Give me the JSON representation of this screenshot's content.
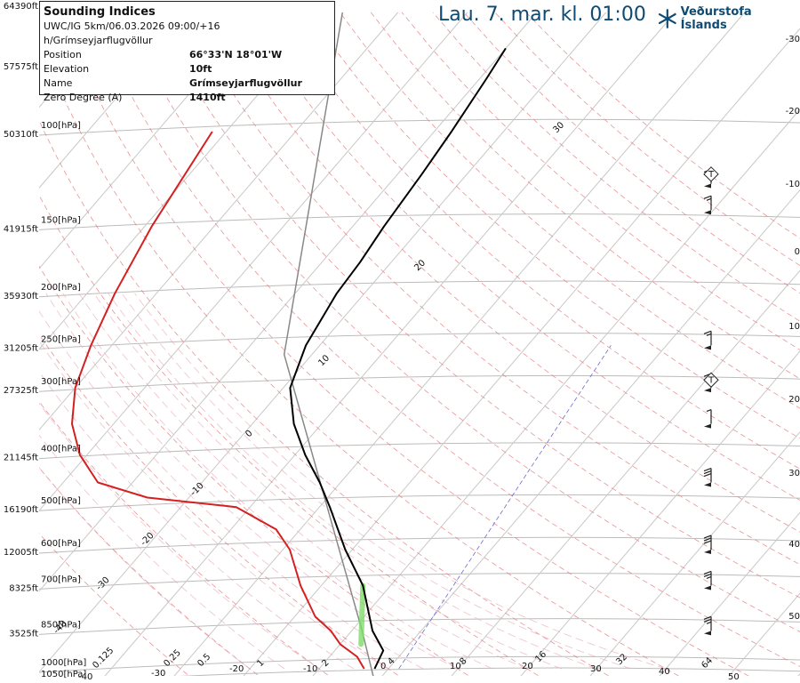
{
  "header": {
    "title": "Sounding Indices",
    "model_line": "UWC/IG 5km/06.03.2026 09:00/+16 h/Grímseyjarflugvöllur",
    "rows": [
      {
        "key": "Position",
        "value": "66°33'N 18°01'W"
      },
      {
        "key": "Elevation",
        "value": "10ft"
      },
      {
        "key": "Name",
        "value": "Grímseyjarflugvöllur"
      },
      {
        "key": "Zero Degree (A)",
        "value": "1410ft"
      }
    ]
  },
  "valid_time": "Lau. 7. mar. kl. 01:00",
  "logo_text": "Veðurstofa Íslands",
  "chart_data": {
    "type": "line",
    "title": "",
    "y_axis": "pressure (hPa), log scale",
    "pressure_levels": [
      {
        "p": 100,
        "label": "100[hPa]",
        "height": "50310ft"
      },
      {
        "p": 150,
        "label": "150[hPa]",
        "height": "41915ft"
      },
      {
        "p": 200,
        "label": "200[hPa]",
        "height": "35930ft"
      },
      {
        "p": 250,
        "label": "250[hPa]",
        "height": "31205ft"
      },
      {
        "p": 300,
        "label": "300[hPa]",
        "height": "27325ft"
      },
      {
        "p": 400,
        "label": "400[hPa]",
        "height": "21145ft"
      },
      {
        "p": 500,
        "label": "500[hPa]",
        "height": "16190ft"
      },
      {
        "p": 600,
        "label": "600[hPa]",
        "height": "12005ft"
      },
      {
        "p": 700,
        "label": "700[hPa]",
        "height": "8325ft"
      },
      {
        "p": 850,
        "label": "850[hPa]",
        "height": "3525ft"
      },
      {
        "p": 1000,
        "label": "1000[hPa]",
        "height": ""
      },
      {
        "p": 1050,
        "label": "1050[hPa]",
        "height": ""
      }
    ],
    "top_heights": [
      "64390ft",
      "57575ft"
    ],
    "isotherm_labels": [
      "30",
      "20",
      "10",
      "0",
      "-10",
      "-20",
      "-30",
      "-40"
    ],
    "bottom_labels": [
      "-40",
      "0.125",
      "-30",
      "0.25",
      "0.5",
      "-20",
      "1",
      "-10",
      "2",
      "0",
      "4",
      "10",
      "8",
      "20",
      "16",
      "30",
      "32",
      "40",
      "64",
      "50"
    ],
    "right_labels": [
      "-30",
      "-20",
      "-10",
      "0",
      "10",
      "20",
      "30",
      "40",
      "50"
    ],
    "series": [
      {
        "name": "temperature",
        "color": "#000000",
        "points": [
          [
            1000,
            -2.0
          ],
          [
            925,
            -3.0
          ],
          [
            850,
            -7.0
          ],
          [
            700,
            -14.0
          ],
          [
            600,
            -21.0
          ],
          [
            500,
            -28.5
          ],
          [
            450,
            -33.0
          ],
          [
            400,
            -38.5
          ],
          [
            350,
            -44.0
          ],
          [
            300,
            -49.0
          ],
          [
            250,
            -52.0
          ],
          [
            200,
            -54.0
          ],
          [
            175,
            -54.5
          ],
          [
            150,
            -55.5
          ],
          [
            120,
            -56.5
          ],
          [
            100,
            -57.5
          ],
          [
            80,
            -59.0
          ],
          [
            70,
            -60.0
          ]
        ]
      },
      {
        "name": "dewpoint",
        "color": "#d42020",
        "points": [
          [
            1000,
            -3.5
          ],
          [
            950,
            -6.0
          ],
          [
            900,
            -10.0
          ],
          [
            850,
            -13.0
          ],
          [
            800,
            -17.0
          ],
          [
            700,
            -23.0
          ],
          [
            600,
            -29.0
          ],
          [
            550,
            -33.5
          ],
          [
            500,
            -42.0
          ],
          [
            480,
            -56.0
          ],
          [
            450,
            -65.0
          ],
          [
            400,
            -71.0
          ],
          [
            350,
            -76.0
          ],
          [
            300,
            -80.0
          ],
          [
            250,
            -83.0
          ],
          [
            200,
            -86.0
          ],
          [
            150,
            -89.0
          ],
          [
            100,
            -92.0
          ]
        ]
      }
    ],
    "wind_barbs": [
      {
        "p": 125,
        "kt": 20
      },
      {
        "p": 140,
        "kt": 15
      },
      {
        "p": 250,
        "kt": 15
      },
      {
        "p": 300,
        "kt": 10
      },
      {
        "p": 350,
        "kt": 5
      },
      {
        "p": 450,
        "kt": 30
      },
      {
        "p": 600,
        "kt": 30
      },
      {
        "p": 700,
        "kt": 25
      },
      {
        "p": 850,
        "kt": 25
      }
    ],
    "tropopause_markers": [
      {
        "p": 120,
        "label": "T"
      },
      {
        "p": 290,
        "label": "T"
      }
    ],
    "colors": {
      "temperature": "#000000",
      "dewpoint": "#d42020",
      "isobar": "#bbbbbb",
      "isotherm": "#c8c8c8",
      "dry_adiabat": "#e27b7b",
      "moist_adiabat": "#e8a5b3",
      "mixing_ratio": "#6a6ad0",
      "title": "#0f4a72",
      "parcel": "#888888",
      "lcl": "#7fdc6a"
    }
  }
}
